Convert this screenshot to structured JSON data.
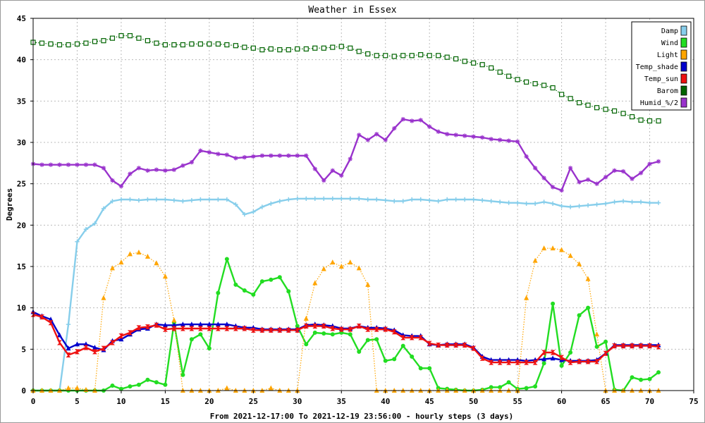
{
  "chart_data": {
    "type": "line",
    "title": "Weather in Essex",
    "ylabel": "Degrees",
    "xlabel": "From 2021-12-17:00 To 2021-12-19 23:56:00 - hourly steps (3 days)",
    "xlim": [
      0,
      75
    ],
    "ylim": [
      0,
      45
    ],
    "xticks": [
      0,
      5,
      10,
      15,
      20,
      25,
      30,
      35,
      40,
      45,
      50,
      55,
      60,
      65,
      70,
      75
    ],
    "yticks": [
      0,
      5,
      10,
      15,
      20,
      25,
      30,
      35,
      40,
      45
    ],
    "grid": true,
    "legend_position": "top-right",
    "series": [
      {
        "name": "Damp",
        "color": "#87ceeb",
        "marker": "plus",
        "line": "solid",
        "values": [
          0,
          0,
          0,
          0,
          8,
          18,
          19.5,
          20.2,
          22,
          22.9,
          23.1,
          23.1,
          23,
          23.1,
          23.1,
          23.1,
          23,
          22.9,
          23,
          23.1,
          23.1,
          23.1,
          23.1,
          22.5,
          21.3,
          21.6,
          22.2,
          22.6,
          22.9,
          23.1,
          23.2,
          23.2,
          23.2,
          23.2,
          23.2,
          23.2,
          23.2,
          23.2,
          23.1,
          23.1,
          23,
          22.9,
          22.9,
          23.1,
          23.1,
          23,
          22.9,
          23.1,
          23.1,
          23.1,
          23.1,
          23,
          22.9,
          22.8,
          22.7,
          22.7,
          22.6,
          22.6,
          22.8,
          22.6,
          22.3,
          22.2,
          22.3,
          22.4,
          22.5,
          22.6,
          22.8,
          22.9,
          22.8,
          22.8,
          22.7,
          22.7
        ]
      },
      {
        "name": "Wind",
        "color": "#22dd22",
        "marker": "circle",
        "line": "solid",
        "values": [
          0,
          0,
          0,
          0,
          0,
          0,
          0,
          0,
          0,
          0.6,
          0.2,
          0.5,
          0.7,
          1.3,
          1,
          0.7,
          8.2,
          1.9,
          6.2,
          6.8,
          5.1,
          11.8,
          15.9,
          12.8,
          12.1,
          11.6,
          13.2,
          13.4,
          13.7,
          12,
          7.8,
          5.6,
          7,
          6.9,
          6.8,
          7,
          6.8,
          4.7,
          6.1,
          6.2,
          3.6,
          3.8,
          5.4,
          4.1,
          2.7,
          2.7,
          0.3,
          0.2,
          0.1,
          0,
          0,
          0.1,
          0.4,
          0.4,
          1,
          0.2,
          0.3,
          0.5,
          3.3,
          10.5,
          3,
          4.6,
          9.1,
          10,
          5.3,
          5.9,
          0.1,
          0,
          1.6,
          1.3,
          1.4,
          2.2
        ]
      },
      {
        "name": "Light",
        "color": "#ffa500",
        "marker": "triangle",
        "line": "dotted",
        "values": [
          0,
          0,
          0,
          0,
          0.3,
          0.3,
          0.1,
          0,
          11.2,
          14.8,
          15.5,
          16.5,
          16.7,
          16.2,
          15.4,
          13.8,
          8.5,
          0,
          0,
          0,
          0,
          0,
          0.3,
          0,
          0,
          0,
          0,
          0.3,
          0,
          0,
          0,
          8.7,
          13,
          14.7,
          15.5,
          15,
          15.5,
          14.8,
          12.8,
          0,
          0,
          0,
          0,
          0,
          0,
          0,
          0,
          0,
          0,
          0,
          0,
          0,
          0,
          0,
          0,
          0,
          11.2,
          15.7,
          17.2,
          17.2,
          17,
          16.3,
          15.3,
          13.5,
          6.8,
          0,
          0,
          0,
          0,
          0,
          0,
          0
        ]
      },
      {
        "name": "Temp_shade",
        "color": "#0000cc",
        "marker": "triangle",
        "line": "solid",
        "values": [
          9.5,
          9,
          8.6,
          6.7,
          5.1,
          5.6,
          5.6,
          5.2,
          4.9,
          6,
          6.2,
          6.8,
          7.4,
          7.5,
          8,
          7.9,
          7.9,
          8,
          8,
          8,
          8,
          8,
          8,
          7.8,
          7.6,
          7.6,
          7.4,
          7.4,
          7.4,
          7.4,
          7.4,
          7.9,
          8,
          7.9,
          7.8,
          7.5,
          7.5,
          7.8,
          7.6,
          7.6,
          7.5,
          7.3,
          6.7,
          6.6,
          6.6,
          5.6,
          5.5,
          5.6,
          5.6,
          5.6,
          5.2,
          4.1,
          3.7,
          3.7,
          3.7,
          3.7,
          3.6,
          3.7,
          3.8,
          3.9,
          3.7,
          3.6,
          3.6,
          3.6,
          3.7,
          4.5,
          5.5,
          5.5,
          5.5,
          5.5,
          5.5,
          5.5
        ]
      },
      {
        "name": "Temp_sun",
        "color": "#ee1111",
        "marker": "hourglass",
        "line": "solid",
        "values": [
          9.2,
          8.9,
          8.2,
          5.8,
          4.3,
          4.7,
          5.2,
          4.7,
          5.1,
          5.8,
          6.6,
          7,
          7.6,
          7.7,
          7.9,
          7.4,
          7.5,
          7.5,
          7.5,
          7.5,
          7.5,
          7.5,
          7.5,
          7.5,
          7.5,
          7.3,
          7.3,
          7.3,
          7.3,
          7.3,
          7.3,
          7.8,
          7.8,
          7.8,
          7.5,
          7.4,
          7.4,
          7.8,
          7.4,
          7.4,
          7.4,
          7.1,
          6.4,
          6.4,
          6.4,
          5.7,
          5.5,
          5.5,
          5.5,
          5.5,
          5.1,
          3.9,
          3.4,
          3.4,
          3.4,
          3.4,
          3.4,
          3.4,
          4.6,
          4.6,
          4,
          3.4,
          3.5,
          3.5,
          3.5,
          4.5,
          5.4,
          5.4,
          5.4,
          5.4,
          5.4,
          5.3
        ]
      },
      {
        "name": "Barom",
        "color": "#006400",
        "marker": "square",
        "line": "dotted",
        "values": [
          42.1,
          42,
          41.9,
          41.8,
          41.8,
          41.9,
          42,
          42.2,
          42.3,
          42.6,
          42.9,
          42.9,
          42.6,
          42.3,
          42,
          41.8,
          41.8,
          41.8,
          41.9,
          41.9,
          41.9,
          41.9,
          41.8,
          41.7,
          41.5,
          41.4,
          41.2,
          41.3,
          41.2,
          41.2,
          41.3,
          41.3,
          41.4,
          41.4,
          41.5,
          41.6,
          41.4,
          41,
          40.7,
          40.5,
          40.5,
          40.4,
          40.5,
          40.5,
          40.6,
          40.5,
          40.5,
          40.3,
          40.1,
          39.8,
          39.6,
          39.4,
          39,
          38.5,
          38,
          37.6,
          37.3,
          37.1,
          36.9,
          36.6,
          35.8,
          35.3,
          34.8,
          34.5,
          34.2,
          34,
          33.8,
          33.5,
          33.1,
          32.7,
          32.6,
          32.6
        ]
      },
      {
        "name": "Humid_%/2",
        "color": "#9932cc",
        "marker": "star",
        "line": "solid",
        "values": [
          27.4,
          27.3,
          27.3,
          27.3,
          27.3,
          27.3,
          27.3,
          27.3,
          26.9,
          25.4,
          24.7,
          26.2,
          26.9,
          26.6,
          26.7,
          26.6,
          26.7,
          27.2,
          27.6,
          29,
          28.8,
          28.6,
          28.5,
          28.1,
          28.2,
          28.3,
          28.4,
          28.4,
          28.4,
          28.4,
          28.4,
          28.4,
          26.8,
          25.4,
          26.6,
          26,
          28,
          30.9,
          30.3,
          31,
          30.3,
          31.7,
          32.8,
          32.6,
          32.7,
          31.9,
          31.3,
          31,
          30.9,
          30.8,
          30.7,
          30.6,
          30.4,
          30.3,
          30.2,
          30.1,
          28.3,
          26.9,
          25.7,
          24.6,
          24.2,
          26.9,
          25.2,
          25.5,
          25,
          25.8,
          26.6,
          26.5,
          25.6,
          26.3,
          27.4,
          27.7
        ]
      }
    ]
  }
}
